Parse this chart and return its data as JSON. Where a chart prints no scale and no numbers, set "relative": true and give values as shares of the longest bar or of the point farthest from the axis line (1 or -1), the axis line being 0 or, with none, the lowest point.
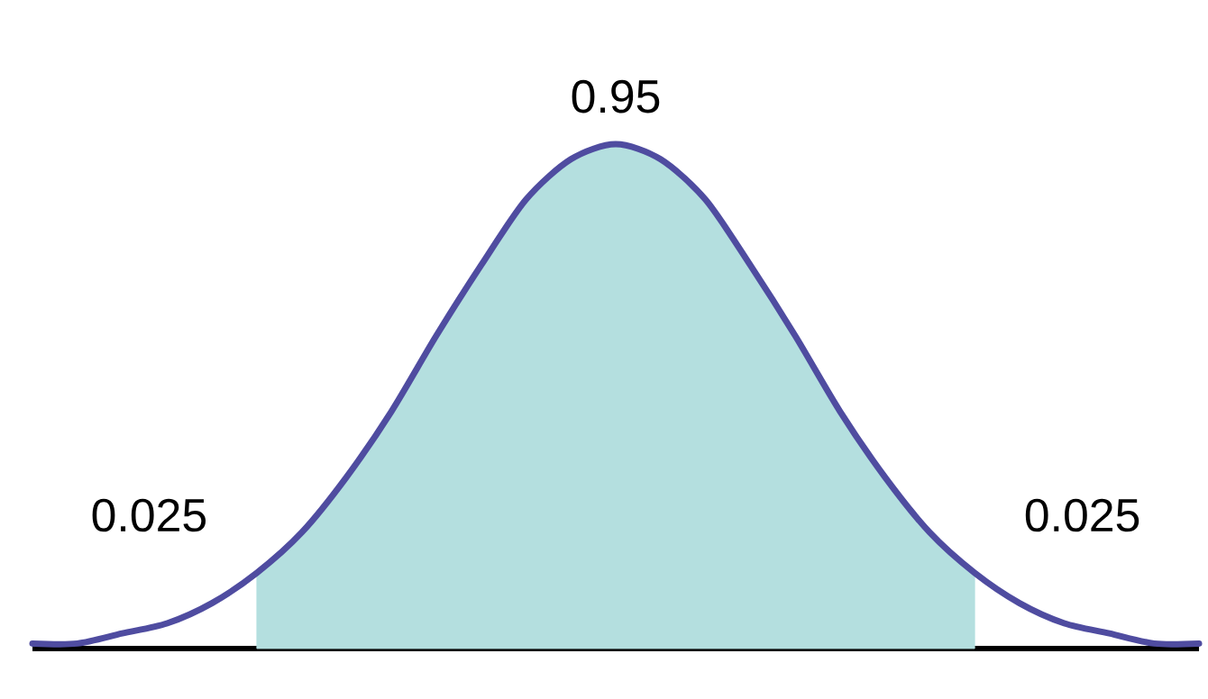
{
  "chart_data": {
    "type": "area",
    "relative": true,
    "categories": [
      null,
      null,
      null,
      null,
      null,
      null,
      null,
      null,
      null,
      null,
      null,
      null,
      null,
      null,
      null,
      null,
      null,
      null,
      null,
      null,
      null,
      null,
      null,
      null,
      null,
      null,
      null
    ],
    "series": [
      {
        "color": "#b4dfdf",
        "values": [
          null,
          null,
          null,
          null,
          null,
          0.15,
          0.23,
          0.34,
          0.47,
          0.62,
          0.76,
          0.89,
          0.97,
          1,
          0.97,
          0.89,
          0.76,
          0.62,
          0.47,
          0.34,
          0.23,
          0.15,
          null,
          null,
          null,
          null,
          null
        ]
      },
      {
        "type": "line",
        "color": "#4f4ca0",
        "values": [
          0.01,
          0.01,
          0.03,
          0.05,
          0.09,
          0.15,
          0.23,
          0.34,
          0.47,
          0.62,
          0.76,
          0.89,
          0.97,
          1,
          0.97,
          0.89,
          0.76,
          0.62,
          0.47,
          0.34,
          0.23,
          0.15,
          0.09,
          0.05,
          0.03,
          0.01,
          0.01
        ]
      }
    ],
    "annotations": [
      "0.95",
      "0.025",
      "0.025"
    ]
  }
}
